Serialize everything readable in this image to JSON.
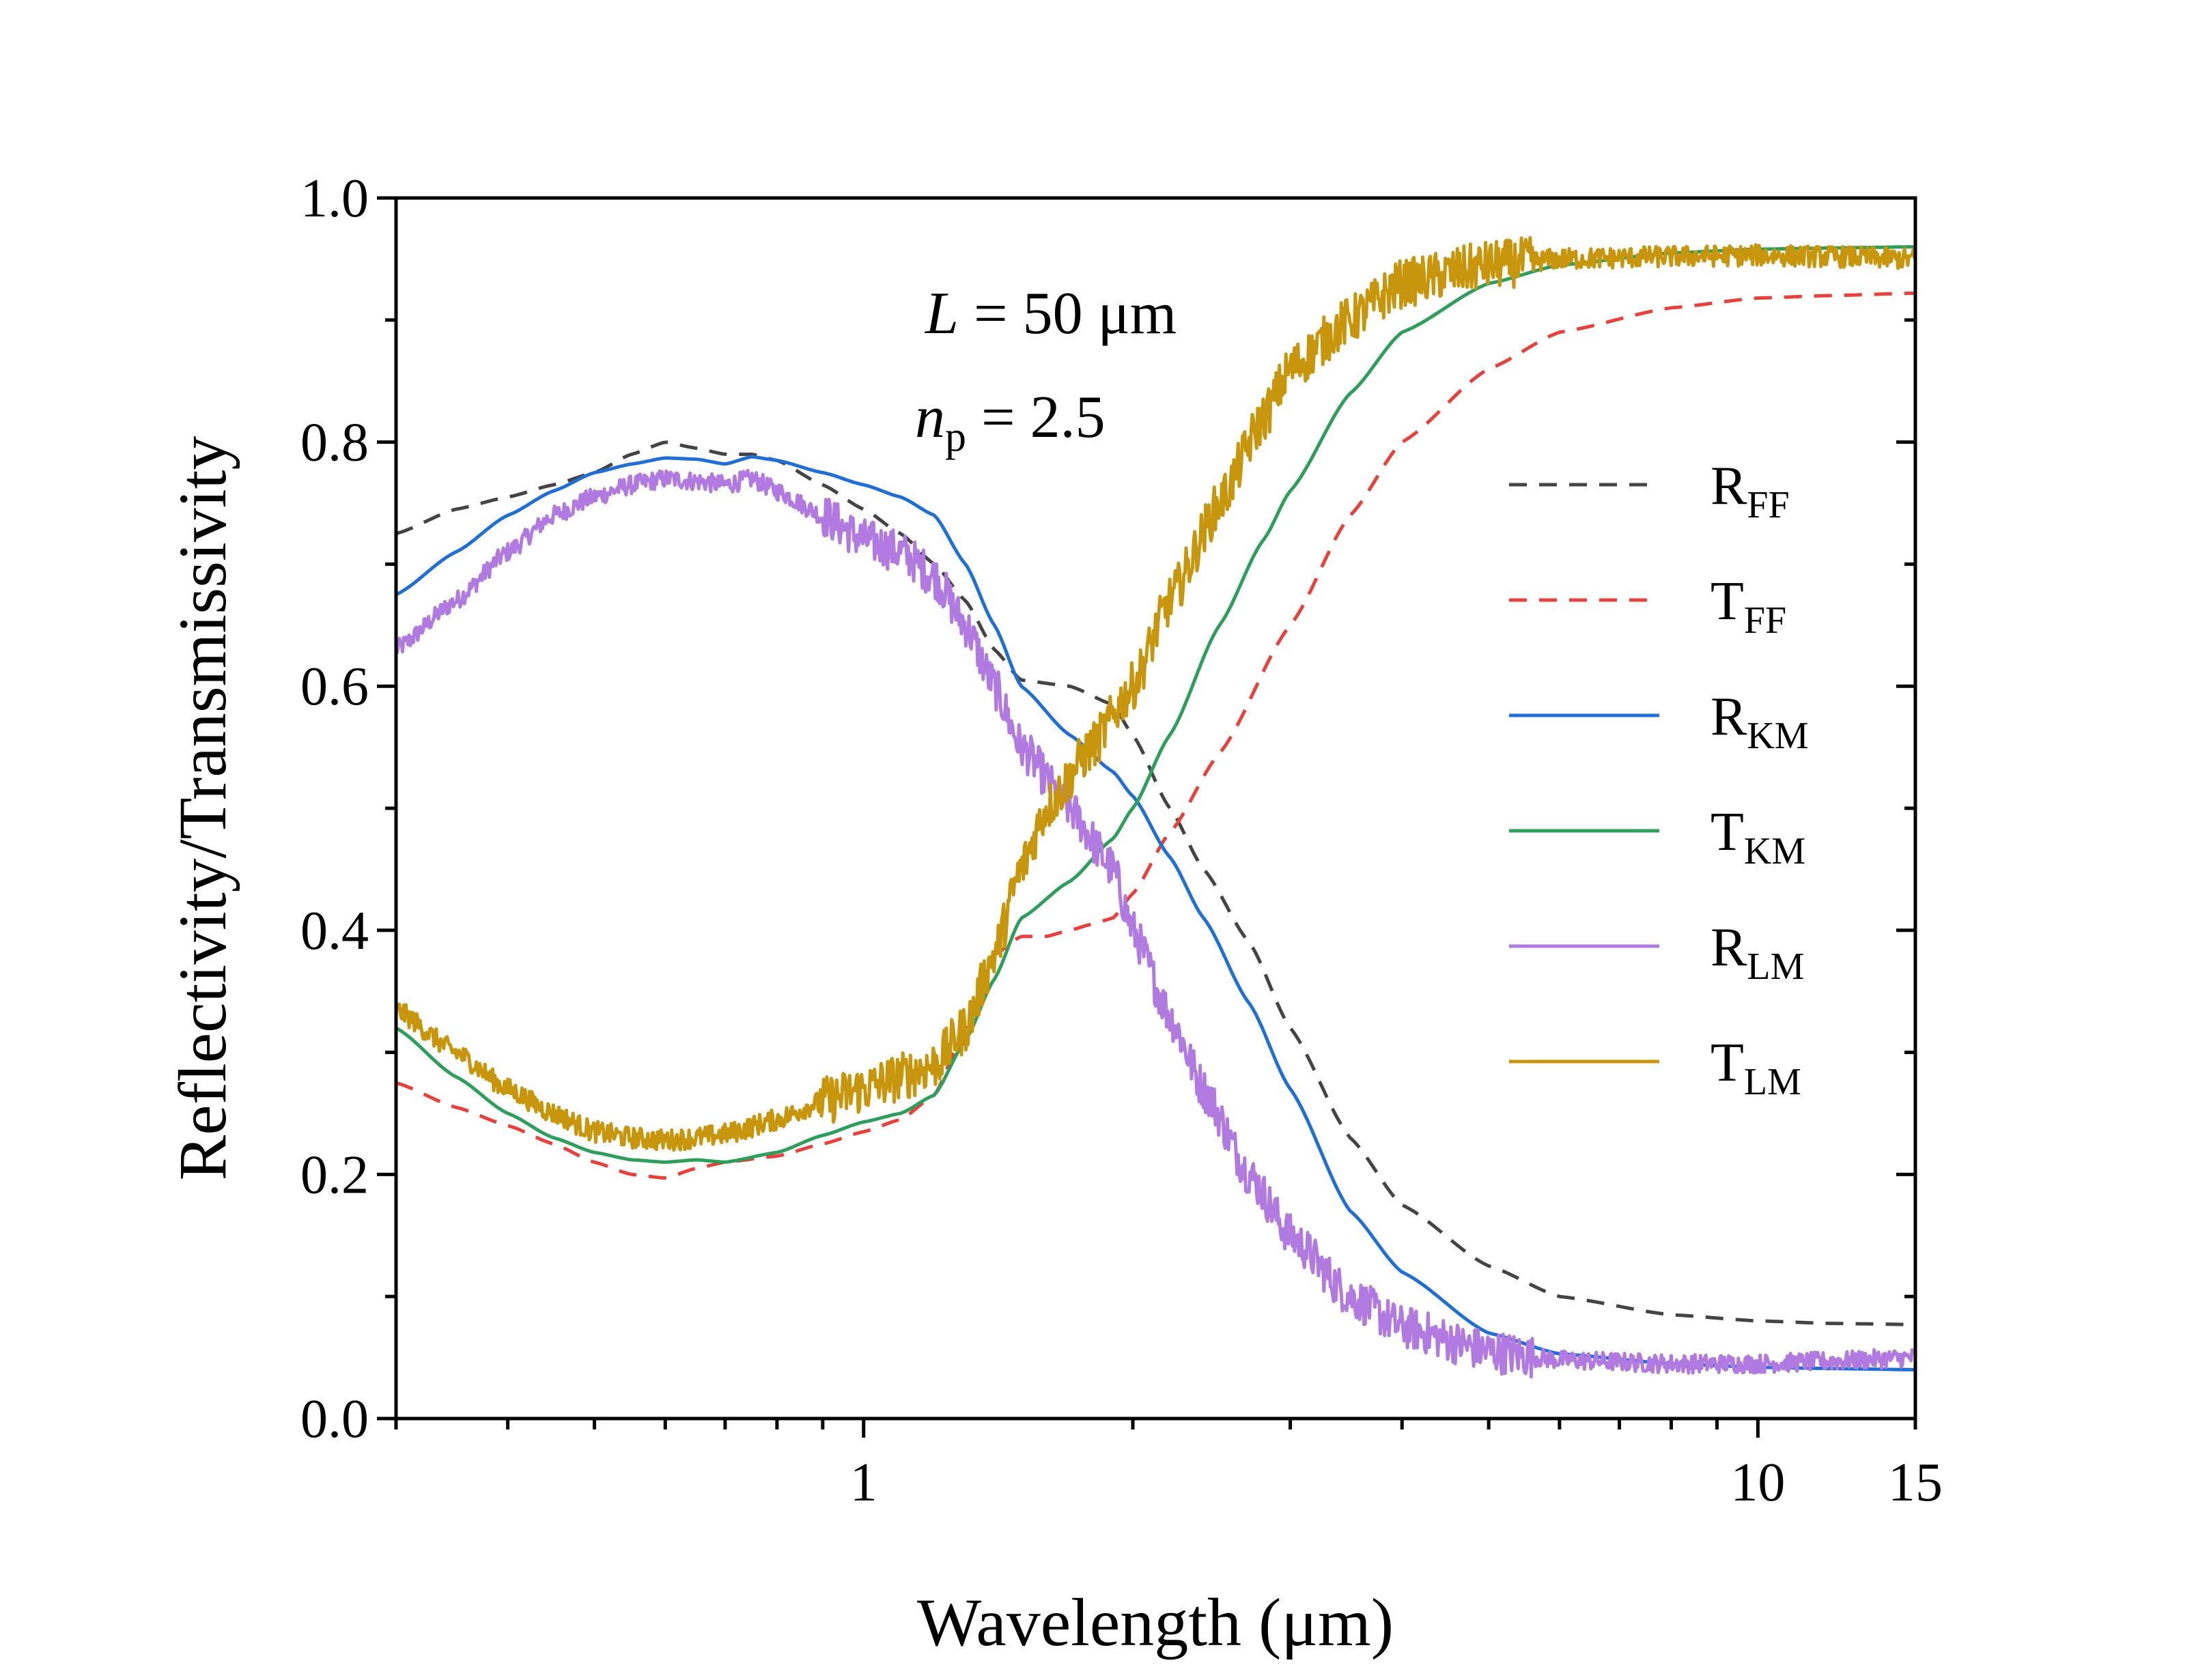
{
  "chart_data": {
    "type": "line",
    "xscale": "log",
    "xlim": [
      0.3,
      15
    ],
    "ylim": [
      0.0,
      1.0
    ],
    "xlabel": "Wavelength (μm)",
    "ylabel": "Reflectivity/Transmissivity",
    "x_ticks": [
      {
        "value": 1,
        "label": "1"
      },
      {
        "value": 10,
        "label": "10"
      },
      {
        "value": 15,
        "label": "15"
      }
    ],
    "y_ticks": [
      {
        "value": 0.0,
        "label": "0.0"
      },
      {
        "value": 0.2,
        "label": "0.2"
      },
      {
        "value": 0.4,
        "label": "0.4"
      },
      {
        "value": 0.6,
        "label": "0.6"
      },
      {
        "value": 0.8,
        "label": "0.8"
      },
      {
        "value": 1.0,
        "label": "1.0"
      }
    ],
    "annotations": [
      {
        "main": "L",
        "rest": " = 50 μm"
      },
      {
        "main": "n",
        "sub": "p",
        "rest": " = 2.5"
      }
    ],
    "legend_position": "right",
    "series": [
      {
        "name": "RFF",
        "label_main": "R",
        "label_sub": "FF",
        "color": "#444444",
        "dash": "dashed",
        "noise": 0,
        "x": [
          0.3,
          0.35,
          0.4,
          0.45,
          0.5,
          0.55,
          0.6,
          0.65,
          0.7,
          0.75,
          0.8,
          0.9,
          1.0,
          1.1,
          1.2,
          1.3,
          1.4,
          1.5,
          1.7,
          1.9,
          2.0,
          2.2,
          2.4,
          2.7,
          3.0,
          3.5,
          4.0,
          5.0,
          6.0,
          8.0,
          10.0,
          12.0,
          15.0
        ],
        "y": [
          0.725,
          0.745,
          0.755,
          0.765,
          0.775,
          0.79,
          0.8,
          0.795,
          0.79,
          0.79,
          0.785,
          0.765,
          0.745,
          0.725,
          0.7,
          0.67,
          0.63,
          0.605,
          0.6,
          0.585,
          0.56,
          0.5,
          0.45,
          0.39,
          0.32,
          0.23,
          0.175,
          0.125,
          0.1,
          0.085,
          0.08,
          0.078,
          0.077
        ]
      },
      {
        "name": "TFF",
        "label_main": "T",
        "label_sub": "FF",
        "color": "#e8403a",
        "dash": "dashed",
        "noise": 0,
        "x": [
          0.3,
          0.35,
          0.4,
          0.45,
          0.5,
          0.55,
          0.6,
          0.65,
          0.7,
          0.8,
          0.9,
          1.0,
          1.1,
          1.2,
          1.3,
          1.4,
          1.5,
          1.6,
          1.7,
          1.8,
          1.9,
          2.0,
          2.2,
          2.5,
          3.0,
          3.5,
          4.0,
          5.0,
          6.0,
          8.0,
          10.0,
          12.0,
          15.0
        ],
        "y": [
          0.275,
          0.255,
          0.24,
          0.225,
          0.21,
          0.2,
          0.197,
          0.205,
          0.21,
          0.215,
          0.225,
          0.235,
          0.245,
          0.265,
          0.32,
          0.38,
          0.395,
          0.395,
          0.4,
          0.405,
          0.41,
          0.43,
          0.48,
          0.545,
          0.65,
          0.74,
          0.8,
          0.86,
          0.89,
          0.91,
          0.918,
          0.92,
          0.922
        ]
      },
      {
        "name": "RKM",
        "label_main": "R",
        "label_sub": "KM",
        "color": "#1f6fd6",
        "dash": "solid",
        "noise": 0,
        "x": [
          0.3,
          0.35,
          0.4,
          0.45,
          0.5,
          0.55,
          0.6,
          0.65,
          0.7,
          0.75,
          0.8,
          0.9,
          1.0,
          1.1,
          1.2,
          1.3,
          1.4,
          1.5,
          1.7,
          1.9,
          2.0,
          2.2,
          2.4,
          2.7,
          3.0,
          3.5,
          4.0,
          5.0,
          6.0,
          8.0,
          10.0,
          12.0,
          15.0
        ],
        "y": [
          0.675,
          0.71,
          0.74,
          0.76,
          0.775,
          0.782,
          0.787,
          0.786,
          0.782,
          0.788,
          0.785,
          0.775,
          0.765,
          0.755,
          0.74,
          0.7,
          0.65,
          0.6,
          0.56,
          0.53,
          0.51,
          0.46,
          0.41,
          0.34,
          0.27,
          0.17,
          0.12,
          0.07,
          0.053,
          0.045,
          0.042,
          0.041,
          0.04
        ]
      },
      {
        "name": "TKM",
        "label_main": "T",
        "label_sub": "KM",
        "color": "#2e9e5b",
        "dash": "solid",
        "noise": 0,
        "x": [
          0.3,
          0.35,
          0.4,
          0.45,
          0.5,
          0.55,
          0.6,
          0.65,
          0.7,
          0.8,
          0.9,
          1.0,
          1.1,
          1.2,
          1.3,
          1.4,
          1.5,
          1.7,
          1.9,
          2.0,
          2.2,
          2.5,
          2.8,
          3.0,
          3.5,
          4.0,
          5.0,
          6.0,
          8.0,
          10.0,
          12.0,
          15.0
        ],
        "y": [
          0.32,
          0.28,
          0.25,
          0.23,
          0.218,
          0.212,
          0.21,
          0.212,
          0.21,
          0.218,
          0.232,
          0.243,
          0.25,
          0.265,
          0.31,
          0.36,
          0.41,
          0.44,
          0.475,
          0.5,
          0.56,
          0.65,
          0.72,
          0.76,
          0.84,
          0.89,
          0.93,
          0.945,
          0.955,
          0.958,
          0.959,
          0.96
        ]
      },
      {
        "name": "RLM",
        "label_main": "R",
        "label_sub": "LM",
        "color": "#b07ae0",
        "dash": "solid",
        "noise": 0.022,
        "x": [
          0.3,
          0.35,
          0.4,
          0.45,
          0.5,
          0.55,
          0.6,
          0.65,
          0.7,
          0.75,
          0.8,
          0.9,
          1.0,
          1.1,
          1.2,
          1.3,
          1.4,
          1.5,
          1.7,
          1.9,
          2.0,
          2.2,
          2.4,
          2.7,
          3.0,
          3.5,
          4.0,
          5.0,
          6.0,
          8.0,
          10.0,
          12.0,
          15.0
        ],
        "y": [
          0.63,
          0.67,
          0.71,
          0.74,
          0.755,
          0.765,
          0.77,
          0.768,
          0.765,
          0.77,
          0.76,
          0.74,
          0.72,
          0.71,
          0.69,
          0.65,
          0.6,
          0.55,
          0.5,
          0.45,
          0.4,
          0.33,
          0.27,
          0.2,
          0.15,
          0.1,
          0.075,
          0.055,
          0.048,
          0.045,
          0.045,
          0.047,
          0.05
        ]
      },
      {
        "name": "TLM",
        "label_main": "T",
        "label_sub": "LM",
        "color": "#c8960c",
        "dash": "solid",
        "noise": 0.025,
        "x": [
          0.3,
          0.35,
          0.4,
          0.45,
          0.5,
          0.55,
          0.6,
          0.65,
          0.7,
          0.8,
          0.9,
          1.0,
          1.1,
          1.2,
          1.3,
          1.4,
          1.5,
          1.6,
          1.8,
          2.0,
          2.2,
          2.5,
          2.8,
          3.0,
          3.5,
          4.0,
          5.0,
          6.0,
          8.0,
          10.0,
          12.0,
          15.0
        ],
        "y": [
          0.335,
          0.3,
          0.27,
          0.25,
          0.235,
          0.23,
          0.228,
          0.23,
          0.233,
          0.245,
          0.26,
          0.27,
          0.28,
          0.29,
          0.32,
          0.38,
          0.45,
          0.5,
          0.55,
          0.6,
          0.67,
          0.75,
          0.82,
          0.86,
          0.9,
          0.93,
          0.945,
          0.95,
          0.952,
          0.953,
          0.952,
          0.95
        ]
      }
    ]
  }
}
